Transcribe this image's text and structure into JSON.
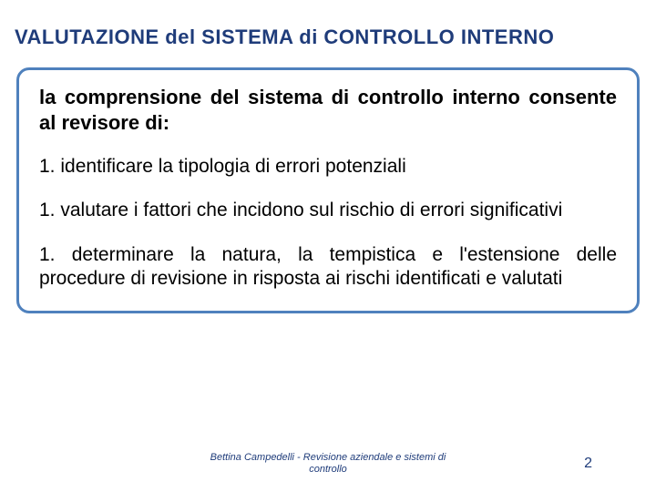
{
  "title": {
    "text": "VALUTAZIONE del SISTEMA di CONTROLLO INTERNO",
    "color": "#1f3c7a",
    "fontsize": 22
  },
  "box": {
    "border_color": "#4f81bd",
    "background": "#ffffff"
  },
  "subtitle": {
    "text": "la comprensione del sistema di controllo interno consente al revisore di:",
    "color": "#000000",
    "fontsize": 22
  },
  "items": [
    {
      "num": "1.",
      "text": "identificare la tipologia di errori potenziali",
      "fontsize": 21,
      "color": "#000000"
    },
    {
      "num": "1.",
      "text": "valutare i fattori che incidono sul rischio di errori significativi",
      "fontsize": 21,
      "color": "#000000"
    },
    {
      "num": "1.",
      "text": "determinare la natura, la tempistica e l'estensione delle procedure di revisione in risposta ai rischi identificati e valutati",
      "fontsize": 21,
      "color": "#000000"
    }
  ],
  "footer": {
    "text": "Bettina Campedelli - Revisione aziendale e sistemi di controllo",
    "color": "#1f3c7a",
    "fontsize": 11
  },
  "page": {
    "num": "2",
    "color": "#1f3c7a",
    "fontsize": 16
  }
}
